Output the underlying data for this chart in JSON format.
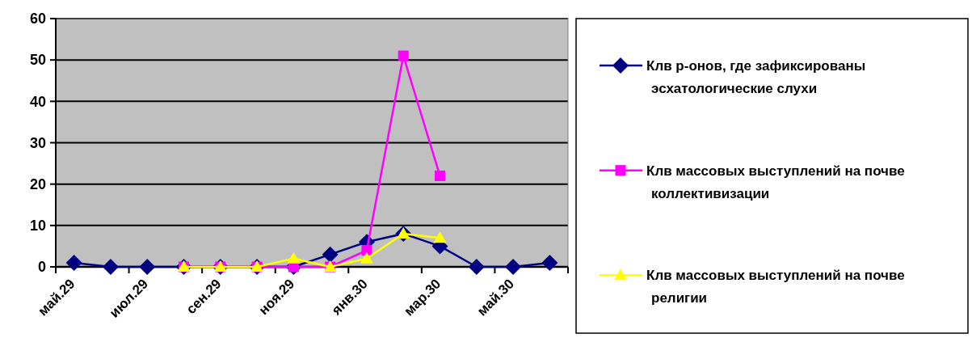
{
  "chart_data": {
    "type": "line",
    "categories": [
      "май.29",
      null,
      "июл.29",
      null,
      "сен.29",
      null,
      "ноя.29",
      null,
      "янв.30",
      null,
      "мар.30",
      null,
      "май.30",
      null
    ],
    "series": [
      {
        "name": "Клв р-онов, где зафиксированы эсхатологические слухи",
        "color": "#000080",
        "marker": "diamond",
        "values": [
          1,
          0,
          0,
          0,
          0,
          0,
          0,
          3,
          6,
          8,
          5,
          0,
          0,
          1
        ]
      },
      {
        "name": "Клв массовых выступлений на почве коллективизации",
        "color": "#ff00ff",
        "marker": "square",
        "values": [
          null,
          null,
          null,
          0,
          0,
          0,
          0,
          0,
          4,
          51,
          22,
          null,
          null,
          null
        ]
      },
      {
        "name": "Клв массовых выступлений на почве религии",
        "color": "#ffff00",
        "marker": "triangle",
        "values": [
          null,
          null,
          null,
          0,
          0,
          0,
          2,
          0,
          2,
          8,
          7,
          null,
          null,
          null
        ]
      }
    ],
    "ylim": [
      0,
      60
    ],
    "yticks": [
      0,
      10,
      20,
      30,
      40,
      50,
      60
    ],
    "grid": "y",
    "legend": "right",
    "line_style": "solid"
  }
}
